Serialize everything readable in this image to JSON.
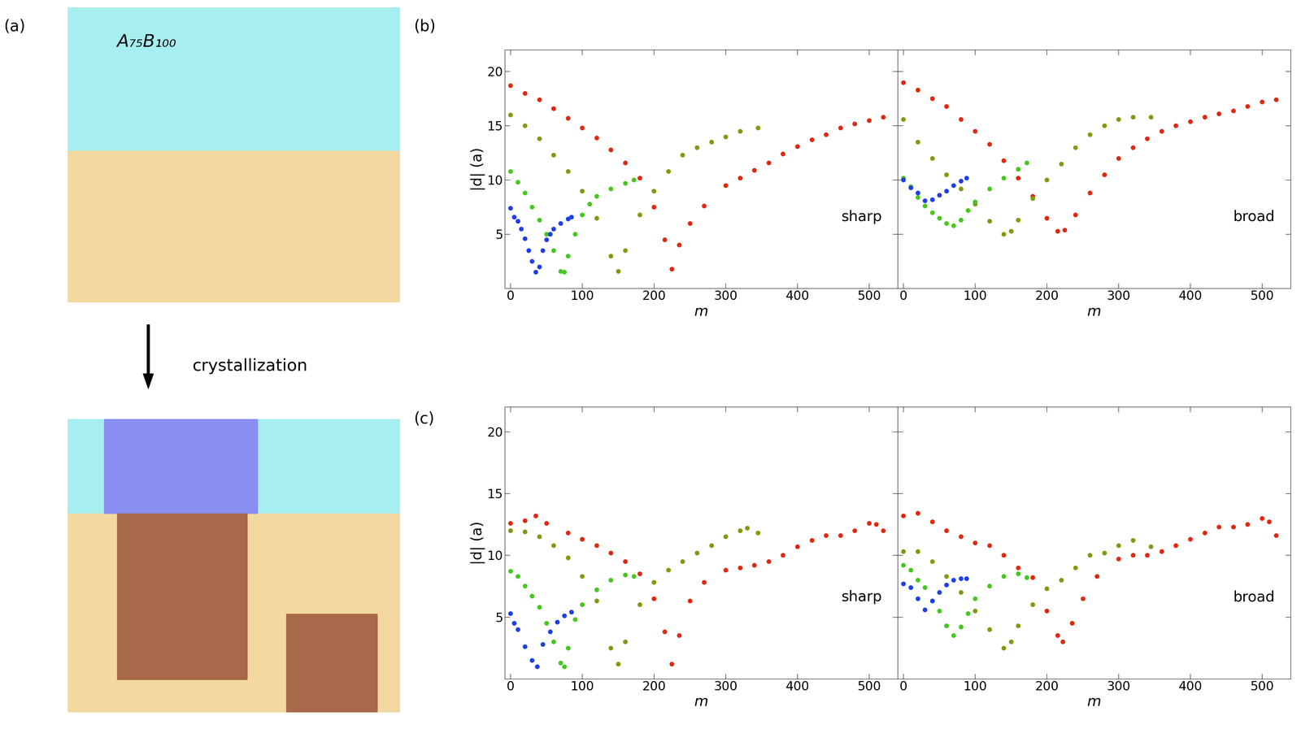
{
  "figure": {
    "panel_labels": [
      "(a)",
      "(b)",
      "(c)"
    ],
    "schematic": {
      "label": "A₇₅B₁₀₀",
      "arrow_text": "crystallization"
    }
  },
  "chart_data": [
    {
      "type": "scatter",
      "xlabel": "m",
      "ylabel": "|d| (a)",
      "annotations": [
        "sharp"
      ],
      "tick_labels": true,
      "xlim": [
        -8,
        540
      ],
      "ylim": [
        0,
        22
      ],
      "xticks": [
        0,
        100,
        200,
        300,
        400,
        500
      ],
      "yticks": [
        5,
        10,
        15,
        20
      ],
      "series": [
        {
          "color": "#e0290f",
          "marker": "o",
          "line_style": "none",
          "x": [
            0,
            20,
            40,
            60,
            80,
            100,
            120,
            140,
            160,
            180,
            200,
            215,
            225,
            235,
            250,
            270,
            300,
            320,
            340,
            360,
            380,
            400,
            420,
            440,
            460,
            480,
            500,
            520
          ],
          "values": [
            18.7,
            18.0,
            17.4,
            16.6,
            15.7,
            14.8,
            13.9,
            12.8,
            11.6,
            10.2,
            7.5,
            4.5,
            1.8,
            4.0,
            6.0,
            7.6,
            9.5,
            10.2,
            10.9,
            11.6,
            12.4,
            13.1,
            13.7,
            14.2,
            14.8,
            15.2,
            15.5,
            15.8
          ]
        },
        {
          "color": "#7f9b10",
          "marker": "o",
          "line_style": "none",
          "x": [
            0,
            20,
            40,
            60,
            80,
            100,
            120,
            140,
            150,
            160,
            180,
            200,
            220,
            240,
            260,
            280,
            300,
            320,
            345
          ],
          "values": [
            16.0,
            15.0,
            13.8,
            12.3,
            10.8,
            9.0,
            6.5,
            3.0,
            1.6,
            3.5,
            6.8,
            9.0,
            10.8,
            12.3,
            13.0,
            13.5,
            14.0,
            14.5,
            14.8
          ]
        },
        {
          "color": "#45c81e",
          "marker": "o",
          "line_style": "none",
          "x": [
            0,
            10,
            20,
            30,
            40,
            50,
            60,
            70,
            75,
            80,
            90,
            100,
            110,
            120,
            140,
            160,
            172
          ],
          "values": [
            10.8,
            9.8,
            8.8,
            7.5,
            6.3,
            5.0,
            3.5,
            1.6,
            1.5,
            3.0,
            5.0,
            6.8,
            7.8,
            8.5,
            9.2,
            9.7,
            10.0
          ]
        },
        {
          "color": "#1f3fe6",
          "marker": "o",
          "line_style": "none",
          "x": [
            0,
            5,
            10,
            15,
            20,
            25,
            30,
            35,
            40,
            45,
            50,
            55,
            60,
            70,
            80,
            85
          ],
          "values": [
            7.4,
            6.6,
            6.2,
            5.5,
            4.6,
            3.5,
            2.5,
            1.5,
            2.0,
            3.5,
            4.5,
            5.0,
            5.5,
            6.0,
            6.4,
            6.6
          ]
        }
      ]
    },
    {
      "type": "scatter",
      "xlabel": "m",
      "annotations": [
        "broad"
      ],
      "tick_labels": "x",
      "xlim": [
        -8,
        540
      ],
      "ylim": [
        0,
        22
      ],
      "xticks": [
        0,
        100,
        200,
        300,
        400,
        500
      ],
      "yticks": [
        5,
        10,
        15,
        20
      ],
      "series": [
        {
          "color": "#e0290f",
          "marker": "o",
          "line_style": "none",
          "x": [
            0,
            20,
            40,
            60,
            80,
            100,
            120,
            140,
            160,
            180,
            200,
            215,
            225,
            240,
            260,
            280,
            300,
            320,
            340,
            360,
            380,
            400,
            420,
            440,
            460,
            480,
            500,
            520
          ],
          "values": [
            19.0,
            18.3,
            17.5,
            16.8,
            15.6,
            14.5,
            13.3,
            11.8,
            10.2,
            8.5,
            6.5,
            5.3,
            5.4,
            6.8,
            8.8,
            10.5,
            12.0,
            13.0,
            13.8,
            14.5,
            15.0,
            15.4,
            15.8,
            16.1,
            16.4,
            16.8,
            17.2,
            17.4
          ]
        },
        {
          "color": "#7f9b10",
          "marker": "o",
          "line_style": "none",
          "x": [
            0,
            20,
            40,
            60,
            80,
            100,
            120,
            140,
            150,
            160,
            180,
            200,
            220,
            240,
            260,
            280,
            300,
            320,
            345
          ],
          "values": [
            15.6,
            13.5,
            12.0,
            10.5,
            9.2,
            7.8,
            6.2,
            5.0,
            5.3,
            6.3,
            8.3,
            10.0,
            11.5,
            13.0,
            14.2,
            15.0,
            15.6,
            15.8,
            15.8
          ]
        },
        {
          "color": "#45c81e",
          "marker": "o",
          "line_style": "none",
          "x": [
            0,
            10,
            20,
            30,
            40,
            50,
            60,
            70,
            80,
            90,
            100,
            120,
            140,
            160,
            172
          ],
          "values": [
            10.2,
            9.4,
            8.4,
            7.6,
            7.0,
            6.5,
            6.0,
            5.8,
            6.3,
            7.2,
            8.0,
            9.2,
            10.2,
            11.0,
            11.6
          ]
        },
        {
          "color": "#1f3fe6",
          "marker": "o",
          "line_style": "none",
          "x": [
            0,
            10,
            20,
            30,
            40,
            50,
            60,
            70,
            80,
            88
          ],
          "values": [
            10.0,
            9.3,
            8.8,
            8.1,
            8.2,
            8.6,
            9.0,
            9.5,
            9.9,
            10.2
          ]
        }
      ]
    },
    {
      "type": "scatter",
      "xlabel": "m",
      "ylabel": "|d| (a)",
      "annotations": [
        "sharp"
      ],
      "tick_labels": true,
      "xlim": [
        -8,
        540
      ],
      "ylim": [
        0,
        22
      ],
      "xticks": [
        0,
        100,
        200,
        300,
        400,
        500
      ],
      "yticks": [
        5,
        10,
        15,
        20
      ],
      "series": [
        {
          "color": "#e0290f",
          "marker": "o",
          "line_style": "none",
          "x": [
            0,
            20,
            35,
            50,
            80,
            100,
            120,
            140,
            160,
            180,
            200,
            215,
            225,
            235,
            250,
            270,
            300,
            320,
            340,
            360,
            380,
            400,
            420,
            440,
            460,
            480,
            500,
            510,
            520
          ],
          "values": [
            12.6,
            12.8,
            13.2,
            12.6,
            11.8,
            11.3,
            10.8,
            10.2,
            9.5,
            8.5,
            6.5,
            3.8,
            1.2,
            3.5,
            6.3,
            7.8,
            8.8,
            9.0,
            9.2,
            9.5,
            10.0,
            10.7,
            11.2,
            11.6,
            11.6,
            12.0,
            12.6,
            12.5,
            12.0
          ]
        },
        {
          "color": "#7f9b10",
          "marker": "o",
          "line_style": "none",
          "x": [
            0,
            20,
            40,
            60,
            80,
            100,
            120,
            140,
            150,
            160,
            180,
            200,
            220,
            240,
            260,
            280,
            300,
            320,
            330,
            345
          ],
          "values": [
            12.0,
            11.9,
            11.5,
            10.8,
            9.8,
            8.3,
            6.3,
            2.5,
            1.2,
            3.0,
            6.0,
            7.8,
            8.8,
            9.5,
            10.2,
            10.8,
            11.5,
            12.0,
            12.2,
            11.8
          ]
        },
        {
          "color": "#45c81e",
          "marker": "o",
          "line_style": "none",
          "x": [
            0,
            10,
            20,
            30,
            40,
            50,
            60,
            70,
            75,
            80,
            90,
            100,
            120,
            140,
            160,
            172
          ],
          "values": [
            8.7,
            8.3,
            7.5,
            6.7,
            5.8,
            4.5,
            3.0,
            1.3,
            1.0,
            2.5,
            4.8,
            6.0,
            7.2,
            8.0,
            8.4,
            8.3
          ]
        },
        {
          "color": "#1f3fe6",
          "marker": "o",
          "line_style": "none",
          "x": [
            0,
            5,
            10,
            20,
            30,
            37,
            45,
            55,
            65,
            75,
            85
          ],
          "values": [
            5.3,
            4.5,
            4.0,
            2.6,
            1.5,
            1.0,
            2.8,
            3.8,
            4.6,
            5.1,
            5.4
          ]
        }
      ]
    },
    {
      "type": "scatter",
      "xlabel": "m",
      "annotations": [
        "broad"
      ],
      "tick_labels": "x",
      "xlim": [
        -8,
        540
      ],
      "ylim": [
        0,
        22
      ],
      "xticks": [
        0,
        100,
        200,
        300,
        400,
        500
      ],
      "yticks": [
        5,
        10,
        15,
        20
      ],
      "series": [
        {
          "color": "#e0290f",
          "marker": "o",
          "line_style": "none",
          "x": [
            0,
            20,
            40,
            60,
            80,
            100,
            120,
            140,
            160,
            180,
            200,
            215,
            222,
            235,
            250,
            270,
            300,
            320,
            340,
            360,
            380,
            400,
            420,
            440,
            460,
            480,
            500,
            510,
            520
          ],
          "values": [
            13.2,
            13.4,
            12.7,
            12.0,
            11.5,
            11.0,
            10.8,
            10.0,
            9.0,
            8.2,
            5.5,
            3.5,
            3.0,
            4.5,
            6.5,
            8.3,
            9.7,
            10.0,
            10.0,
            10.3,
            10.8,
            11.3,
            11.8,
            12.3,
            12.3,
            12.5,
            13.0,
            12.7,
            11.6
          ]
        },
        {
          "color": "#7f9b10",
          "marker": "o",
          "line_style": "none",
          "x": [
            0,
            20,
            40,
            60,
            80,
            100,
            120,
            140,
            150,
            160,
            180,
            200,
            220,
            240,
            260,
            280,
            300,
            320,
            345
          ],
          "values": [
            10.3,
            10.3,
            9.5,
            8.3,
            7.0,
            5.5,
            4.0,
            2.5,
            3.0,
            4.3,
            6.0,
            7.3,
            8.0,
            9.0,
            10.0,
            10.2,
            10.8,
            11.2,
            10.7
          ]
        },
        {
          "color": "#45c81e",
          "marker": "o",
          "line_style": "none",
          "x": [
            0,
            10,
            20,
            30,
            40,
            50,
            60,
            70,
            80,
            90,
            100,
            120,
            140,
            160,
            172
          ],
          "values": [
            9.2,
            8.8,
            8.0,
            7.4,
            6.3,
            5.5,
            4.3,
            3.5,
            4.2,
            5.3,
            6.5,
            7.5,
            8.3,
            8.5,
            8.2
          ]
        },
        {
          "color": "#1f3fe6",
          "marker": "o",
          "line_style": "none",
          "x": [
            0,
            10,
            20,
            30,
            40,
            50,
            60,
            70,
            80,
            88
          ],
          "values": [
            7.7,
            7.4,
            6.5,
            5.6,
            6.3,
            7.0,
            7.6,
            8.0,
            8.1,
            8.1
          ]
        }
      ]
    }
  ]
}
